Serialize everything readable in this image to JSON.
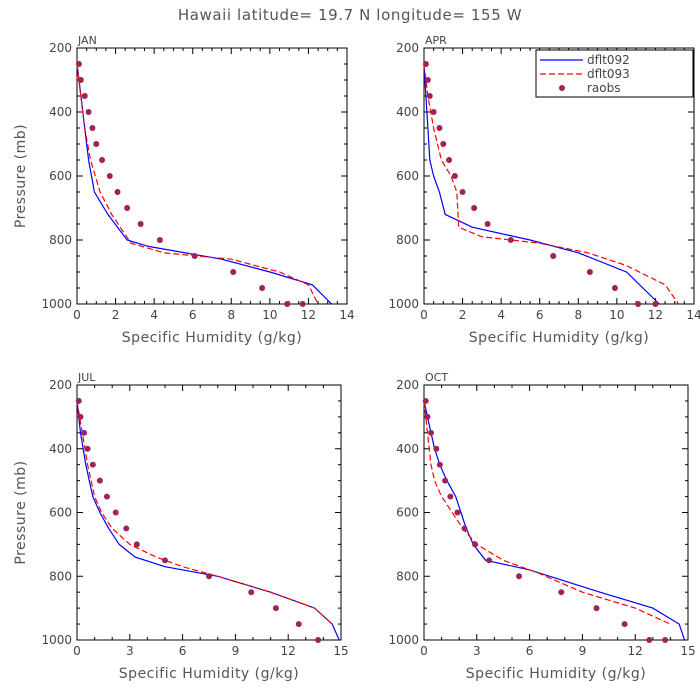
{
  "title": "Hawaii  latitude= 19.7 N longitude= 155 W",
  "colors": {
    "model_a": "#0000ff",
    "model_b": "#ff0000",
    "obs": "#a0225a"
  },
  "legend": {
    "entries": [
      "dflt092",
      "dflt093",
      "raobs"
    ]
  },
  "chart_data": [
    {
      "type": "line",
      "panel_label": "JAN",
      "xlabel": "Specific Humidity (g/kg)",
      "ylabel": "Pressure (mb)",
      "xlim": [
        0,
        14
      ],
      "ylim": [
        1000,
        200
      ],
      "xticks": [
        0,
        2,
        4,
        6,
        8,
        10,
        12,
        14
      ],
      "yticks": [
        200,
        400,
        600,
        800,
        1000
      ],
      "series": [
        {
          "name": "dflt092",
          "style": "solid",
          "x": [
            0.0,
            0.2,
            0.4,
            0.6,
            0.9,
            1.6,
            2.6,
            3.7,
            7.5,
            10.0,
            12.2,
            13.2
          ],
          "y": [
            250,
            350,
            450,
            550,
            650,
            720,
            800,
            820,
            860,
            900,
            940,
            1000
          ]
        },
        {
          "name": "dflt093",
          "style": "dashed",
          "x": [
            0.0,
            0.2,
            0.4,
            0.7,
            1.2,
            1.8,
            2.8,
            4.5,
            8.0,
            10.5,
            12.0,
            12.5
          ],
          "y": [
            250,
            350,
            450,
            550,
            650,
            720,
            810,
            840,
            860,
            900,
            940,
            1000
          ]
        },
        {
          "name": "raobs",
          "style": "markers",
          "x": [
            0.1,
            0.2,
            0.4,
            0.6,
            0.8,
            1.0,
            1.3,
            1.7,
            2.1,
            2.6,
            3.3,
            4.3,
            6.1,
            8.1,
            9.6,
            10.9,
            11.7
          ],
          "y": [
            250,
            300,
            350,
            400,
            450,
            500,
            550,
            600,
            650,
            700,
            750,
            800,
            850,
            900,
            950,
            1000,
            1000
          ]
        }
      ]
    },
    {
      "type": "line",
      "panel_label": "APR",
      "xlabel": "Specific Humidity (g/kg)",
      "ylabel": "",
      "xlim": [
        0,
        14
      ],
      "ylim": [
        1000,
        200
      ],
      "xticks": [
        0,
        2,
        4,
        6,
        8,
        10,
        12,
        14
      ],
      "yticks": [
        200,
        400,
        600,
        800,
        1000
      ],
      "series": [
        {
          "name": "dflt092",
          "style": "solid",
          "x": [
            0.0,
            0.1,
            0.2,
            0.3,
            0.5,
            0.8,
            1.1,
            2.5,
            5.5,
            8.0,
            10.5,
            12.2
          ],
          "y": [
            250,
            350,
            450,
            550,
            600,
            650,
            720,
            760,
            800,
            840,
            900,
            1000
          ]
        },
        {
          "name": "dflt093",
          "style": "dashed",
          "x": [
            0.0,
            0.2,
            0.5,
            0.9,
            1.4,
            1.7,
            1.8,
            3.0,
            6.0,
            8.5,
            10.5,
            12.5,
            13.2
          ],
          "y": [
            250,
            350,
            450,
            550,
            600,
            650,
            760,
            790,
            810,
            840,
            880,
            940,
            1000
          ]
        },
        {
          "name": "raobs",
          "style": "markers",
          "x": [
            0.1,
            0.2,
            0.3,
            0.5,
            0.8,
            1.0,
            1.3,
            1.6,
            2.0,
            2.6,
            3.3,
            4.5,
            6.7,
            8.6,
            9.9,
            11.1,
            12.0
          ],
          "y": [
            250,
            300,
            350,
            400,
            450,
            500,
            550,
            600,
            650,
            700,
            750,
            800,
            850,
            900,
            950,
            1000,
            1000
          ]
        }
      ]
    },
    {
      "type": "line",
      "panel_label": "JUL",
      "xlabel": "Specific Humidity (g/kg)",
      "ylabel": "Pressure (mb)",
      "xlim": [
        0,
        15
      ],
      "ylim": [
        1000,
        200
      ],
      "xticks": [
        0,
        3,
        6,
        9,
        12,
        15
      ],
      "yticks": [
        200,
        400,
        600,
        800,
        1000
      ],
      "series": [
        {
          "name": "dflt092",
          "style": "solid",
          "x": [
            0.0,
            0.2,
            0.5,
            0.9,
            1.3,
            1.8,
            2.4,
            3.3,
            5.0,
            8.0,
            11.0,
            13.5,
            14.5,
            14.9
          ],
          "y": [
            250,
            350,
            450,
            550,
            600,
            650,
            700,
            740,
            770,
            800,
            850,
            900,
            950,
            1000
          ]
        },
        {
          "name": "dflt093",
          "style": "dashed",
          "x": [
            0.0,
            0.3,
            0.6,
            1.0,
            1.4,
            2.0,
            3.0,
            4.5,
            6.0,
            8.0,
            11.0,
            13.5,
            14.5
          ],
          "y": [
            250,
            350,
            450,
            550,
            600,
            650,
            700,
            740,
            770,
            800,
            850,
            900,
            950
          ]
        },
        {
          "name": "raobs",
          "style": "markers",
          "x": [
            0.1,
            0.2,
            0.4,
            0.6,
            0.9,
            1.3,
            1.7,
            2.2,
            2.8,
            3.4,
            5.0,
            7.5,
            9.9,
            11.3,
            12.6,
            13.7
          ],
          "y": [
            250,
            300,
            350,
            400,
            450,
            500,
            550,
            600,
            650,
            700,
            750,
            800,
            850,
            900,
            950,
            1000
          ]
        }
      ]
    },
    {
      "type": "line",
      "panel_label": "OCT",
      "xlabel": "Specific Humidity (g/kg)",
      "ylabel": "",
      "xlim": [
        0,
        15
      ],
      "ylim": [
        1000,
        200
      ],
      "xticks": [
        0,
        3,
        6,
        9,
        12,
        15
      ],
      "yticks": [
        200,
        400,
        600,
        800,
        1000
      ],
      "series": [
        {
          "name": "dflt092",
          "style": "solid",
          "x": [
            0.0,
            0.2,
            0.4,
            0.6,
            0.9,
            1.3,
            1.8,
            2.1,
            2.4,
            2.8,
            3.5,
            6.0,
            10.0,
            13.0,
            14.5,
            14.8
          ],
          "y": [
            250,
            300,
            350,
            400,
            450,
            500,
            550,
            600,
            650,
            700,
            750,
            780,
            850,
            900,
            950,
            1000
          ]
        },
        {
          "name": "dflt093",
          "style": "dashed",
          "x": [
            0.0,
            0.2,
            0.4,
            0.6,
            1.0,
            1.6,
            2.2,
            3.0,
            4.5,
            6.5,
            9.0,
            12.0,
            14.0
          ],
          "y": [
            250,
            350,
            450,
            500,
            550,
            600,
            650,
            700,
            750,
            790,
            850,
            900,
            950
          ]
        },
        {
          "name": "raobs",
          "style": "markers",
          "x": [
            0.1,
            0.2,
            0.4,
            0.7,
            0.9,
            1.2,
            1.5,
            1.9,
            2.3,
            2.9,
            3.7,
            5.4,
            7.8,
            9.8,
            11.4,
            12.8,
            13.7
          ],
          "y": [
            250,
            300,
            350,
            400,
            450,
            500,
            550,
            600,
            650,
            700,
            750,
            800,
            850,
            900,
            950,
            1000,
            1000
          ]
        }
      ]
    }
  ]
}
